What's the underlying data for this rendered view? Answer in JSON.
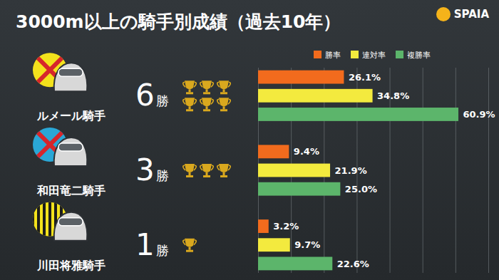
{
  "chart_data": {
    "type": "bar",
    "orientation": "horizontal",
    "title": "3000m以上の騎手別成績（過去10年）",
    "logo": "SPAIA",
    "categories": [
      "ルメール騎手",
      "和田竜二騎手",
      "川田将雅騎手"
    ],
    "wins": [
      6,
      3,
      1
    ],
    "wins_unit": "勝",
    "series": [
      {
        "name": "勝率",
        "color": "#f26b1d",
        "values": [
          26.1,
          9.4,
          3.2
        ],
        "value_labels": [
          "26.1%",
          "9.4%",
          "3.2%"
        ]
      },
      {
        "name": "連対率",
        "color": "#f3ea3e",
        "values": [
          34.8,
          21.9,
          9.7
        ],
        "value_labels": [
          "34.8%",
          "21.9%",
          "9.7%"
        ]
      },
      {
        "name": "複勝率",
        "color": "#5cb56b",
        "values": [
          60.9,
          25.0,
          22.6
        ],
        "value_labels": [
          "60.9%",
          "25.0%",
          "22.6%"
        ]
      }
    ],
    "xlim": [
      0,
      70
    ],
    "xticks": [
      0,
      10,
      20,
      30,
      40,
      50,
      60,
      70
    ],
    "grid": true,
    "tick_labels": false,
    "data_labels": true,
    "legend": "top-right"
  }
}
